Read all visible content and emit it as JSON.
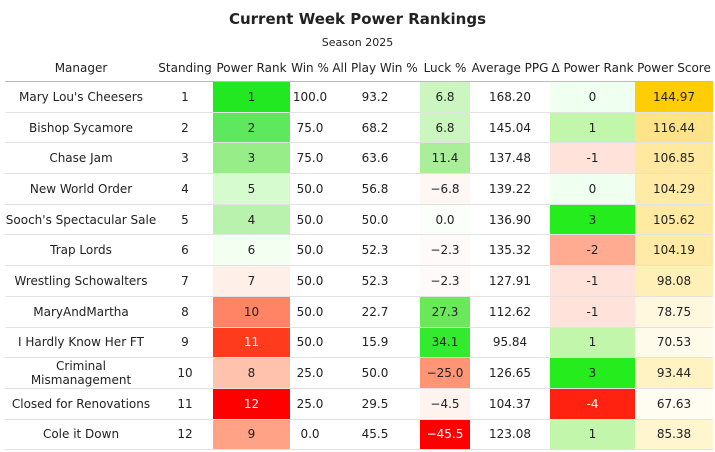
{
  "header": {
    "title": "Current Week Power Rankings",
    "subtitle": "Season 2025"
  },
  "table": {
    "columns": [
      "Manager",
      "Standing",
      "Power Rank",
      "Win %",
      "All Play Win %",
      "Luck %",
      "Average PPG",
      "Δ Power Rank",
      "Power Score"
    ],
    "rows": [
      [
        "Mary Lou's Cheesers",
        "1",
        "1",
        "100.0",
        "93.2",
        "6.8",
        "168.20",
        "0",
        "144.97"
      ],
      [
        "Bishop Sycamore",
        "2",
        "2",
        "75.0",
        "68.2",
        "6.8",
        "145.04",
        "1",
        "116.44"
      ],
      [
        "Chase Jam",
        "3",
        "3",
        "75.0",
        "63.6",
        "11.4",
        "137.48",
        "-1",
        "106.85"
      ],
      [
        "New World Order",
        "4",
        "5",
        "50.0",
        "56.8",
        "−6.8",
        "139.22",
        "0",
        "104.29"
      ],
      [
        "Sooch's Spectacular Sale",
        "5",
        "4",
        "50.0",
        "50.0",
        "0.0",
        "136.90",
        "3",
        "105.62"
      ],
      [
        "Trap Lords",
        "6",
        "6",
        "50.0",
        "52.3",
        "−2.3",
        "135.32",
        "-2",
        "104.19"
      ],
      [
        "Wrestling Schowalters",
        "7",
        "7",
        "50.0",
        "52.3",
        "−2.3",
        "127.91",
        "-1",
        "98.08"
      ],
      [
        "MaryAndMartha",
        "8",
        "10",
        "50.0",
        "22.7",
        "27.3",
        "112.62",
        "-1",
        "78.75"
      ],
      [
        "I Hardly Know Her FT",
        "9",
        "11",
        "50.0",
        "15.9",
        "34.1",
        "95.84",
        "1",
        "70.53"
      ],
      [
        "Criminal Mismanagement",
        "10",
        "8",
        "25.0",
        "50.0",
        "−25.0",
        "126.65",
        "3",
        "93.44"
      ],
      [
        "Closed for Renovations",
        "11",
        "12",
        "25.0",
        "29.5",
        "−4.5",
        "104.37",
        "-4",
        "67.63"
      ],
      [
        "Cole it Down",
        "12",
        "9",
        "0.0",
        "45.5",
        "−45.5",
        "123.08",
        "1",
        "85.38"
      ]
    ]
  }
}
